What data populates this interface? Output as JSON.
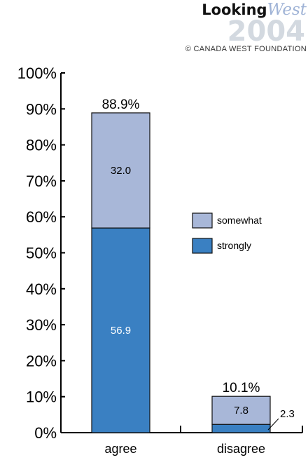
{
  "branding": {
    "logo_word": "Looking",
    "logo_script": "West",
    "logo_year": "2004",
    "copyright": "© CANADA WEST FOUNDATION"
  },
  "colors": {
    "somewhat": "#a8b7d8",
    "strongly": "#3a80c2",
    "outline": "#111111"
  },
  "chart_data": {
    "type": "bar",
    "stacked": true,
    "categories": [
      "agree",
      "disagree"
    ],
    "series": [
      {
        "name": "strongly",
        "values": [
          56.9,
          2.3
        ]
      },
      {
        "name": "somewhat",
        "values": [
          32.0,
          7.8
        ]
      }
    ],
    "segment_labels": [
      [
        "56.9",
        "32.0"
      ],
      [
        "2.3",
        "7.8"
      ]
    ],
    "totals": [
      "88.9%",
      "10.1%"
    ],
    "ylim": [
      0,
      100
    ],
    "yticks": [
      0,
      10,
      20,
      30,
      40,
      50,
      60,
      70,
      80,
      90,
      100
    ],
    "ytick_labels": [
      "0%",
      "10%",
      "20%",
      "30%",
      "40%",
      "50%",
      "60%",
      "70%",
      "80%",
      "90%",
      "100%"
    ],
    "legend": [
      "somewhat",
      "strongly"
    ],
    "legend_position": "right",
    "grid": false,
    "title": "",
    "xlabel": "",
    "ylabel": ""
  }
}
